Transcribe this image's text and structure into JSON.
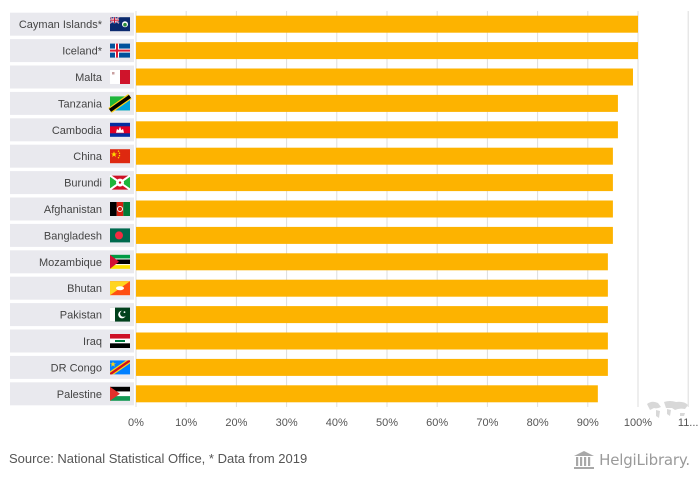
{
  "chart_data": {
    "type": "bar",
    "orientation": "horizontal",
    "categories": [
      "Cayman Islands*",
      "Iceland*",
      "Malta",
      "Tanzania",
      "Cambodia",
      "China",
      "Burundi",
      "Afghanistan",
      "Bangladesh",
      "Mozambique",
      "Bhutan",
      "Pakistan",
      "Iraq",
      "DR Congo",
      "Palestine"
    ],
    "values": [
      100,
      100,
      99,
      96,
      96,
      95,
      95,
      95,
      95,
      94,
      94,
      94,
      94,
      94,
      92
    ],
    "xlim": [
      0,
      110
    ],
    "ticks": [
      "0%",
      "10%",
      "20%",
      "30%",
      "40%",
      "50%",
      "60%",
      "70%",
      "80%",
      "90%",
      "100%",
      "11..."
    ],
    "flags": [
      "cayman-islands-flag",
      "iceland-flag",
      "malta-flag",
      "tanzania-flag",
      "cambodia-flag",
      "china-flag",
      "burundi-flag",
      "afghanistan-flag",
      "bangladesh-flag",
      "mozambique-flag",
      "bhutan-flag",
      "pakistan-flag",
      "iraq-flag",
      "dr-congo-flag",
      "palestine-flag"
    ],
    "colors": {
      "bar": "#FDB300",
      "label_band": "#E9E9EE",
      "grid": "#DDDDDD"
    }
  },
  "footer": {
    "source": "Source: National Statistical Office, * Data from 2019",
    "brand": "HelgiLibrary."
  }
}
